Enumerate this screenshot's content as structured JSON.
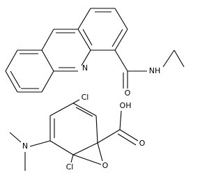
{
  "atoms": [
    {
      "label": "N"
    },
    {
      "label": "O"
    },
    {
      "label": "NH"
    },
    {
      "label": "Cl"
    },
    {
      "label": "OH"
    },
    {
      "label": "O"
    },
    {
      "label": "N"
    },
    {
      "label": "Cl"
    },
    {
      "label": "O"
    }
  ]
}
